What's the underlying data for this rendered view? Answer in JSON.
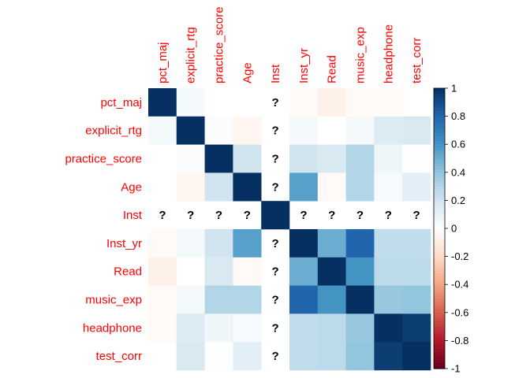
{
  "chart_data": {
    "type": "heatmap",
    "title": "",
    "variables": [
      "pct_maj",
      "explicit_rtg",
      "practice_score",
      "Age",
      "Inst",
      "Inst_yr",
      "Read",
      "music_exp",
      "headphone",
      "test_corr"
    ],
    "values": [
      [
        1.0,
        0.05,
        0.0,
        0.0,
        null,
        -0.03,
        -0.08,
        -0.03,
        -0.02,
        0.0
      ],
      [
        0.05,
        1.0,
        0.02,
        -0.05,
        null,
        0.05,
        0.0,
        0.05,
        0.15,
        0.17
      ],
      [
        0.0,
        0.02,
        1.0,
        0.2,
        null,
        0.2,
        0.17,
        0.3,
        0.07,
        0.01
      ],
      [
        0.0,
        -0.05,
        0.2,
        1.0,
        null,
        0.55,
        -0.03,
        0.3,
        0.04,
        0.12
      ],
      [
        null,
        null,
        null,
        null,
        1.0,
        null,
        null,
        null,
        null,
        null
      ],
      [
        -0.03,
        0.05,
        0.2,
        0.55,
        null,
        1.0,
        0.5,
        0.8,
        0.25,
        0.25
      ],
      [
        -0.08,
        0.0,
        0.17,
        -0.03,
        null,
        0.5,
        1.0,
        0.6,
        0.27,
        0.27
      ],
      [
        -0.03,
        0.05,
        0.3,
        0.3,
        null,
        0.8,
        0.6,
        1.0,
        0.38,
        0.4
      ],
      [
        -0.02,
        0.15,
        0.07,
        0.04,
        null,
        0.25,
        0.27,
        0.38,
        1.0,
        0.95
      ],
      [
        0.0,
        0.17,
        0.01,
        0.12,
        null,
        0.25,
        0.27,
        0.4,
        0.95,
        1.0
      ]
    ],
    "missing_symbol": "?",
    "color_scale": {
      "min": -1,
      "max": 1,
      "low": "#67001f",
      "mid": "#ffffff",
      "high": "#053061"
    },
    "legend_ticks": [
      "1",
      "0.8",
      "0.6",
      "0.4",
      "0.2",
      "0",
      "-0.2",
      "-0.4",
      "-0.6",
      "-0.8",
      "-1"
    ],
    "legend_placement": "right",
    "label_color": "#ff0000"
  }
}
